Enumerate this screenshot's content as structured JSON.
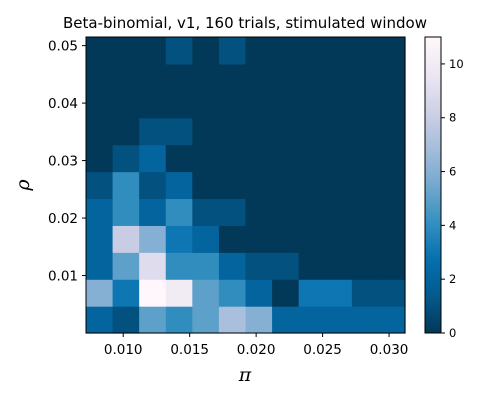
{
  "chart_data": {
    "type": "heatmap",
    "title": "Beta-binomial, v1, 160 trials, stimulated window",
    "xlabel": "π",
    "ylabel": "ρ",
    "x_range": [
      0.0072,
      0.0312
    ],
    "y_range": [
      0.0,
      0.0515
    ],
    "x_ticks": [
      {
        "value": 0.01,
        "label": "0.010"
      },
      {
        "value": 0.015,
        "label": "0.015"
      },
      {
        "value": 0.02,
        "label": "0.020"
      },
      {
        "value": 0.025,
        "label": "0.025"
      },
      {
        "value": 0.03,
        "label": "0.030"
      }
    ],
    "y_ticks": [
      {
        "value": 0.01,
        "label": "0.01"
      },
      {
        "value": 0.02,
        "label": "0.02"
      },
      {
        "value": 0.03,
        "label": "0.03"
      },
      {
        "value": 0.04,
        "label": "0.04"
      },
      {
        "value": 0.05,
        "label": "0.05"
      }
    ],
    "n_cols": 12,
    "n_rows": 11,
    "grid_bottom_to_top": [
      [
        2,
        1,
        5,
        4,
        5,
        7,
        6,
        2,
        2,
        2,
        2,
        2
      ],
      [
        6,
        3,
        11,
        10,
        5,
        4,
        2,
        0,
        3,
        3,
        1,
        1
      ],
      [
        2,
        5,
        9,
        4,
        4,
        2,
        1,
        1,
        0,
        0,
        0,
        0
      ],
      [
        2,
        8,
        6,
        3,
        2,
        0,
        0,
        0,
        0,
        0,
        0,
        0
      ],
      [
        2,
        4,
        2,
        4,
        1,
        1,
        0,
        0,
        0,
        0,
        0,
        0
      ],
      [
        1,
        4,
        1,
        2,
        0,
        0,
        0,
        0,
        0,
        0,
        0,
        0
      ],
      [
        0,
        1,
        2,
        0,
        0,
        0,
        0,
        0,
        0,
        0,
        0,
        0
      ],
      [
        0,
        0,
        1,
        1,
        0,
        0,
        0,
        0,
        0,
        0,
        0,
        0
      ],
      [
        0,
        0,
        0,
        0,
        0,
        0,
        0,
        0,
        0,
        0,
        0,
        0
      ],
      [
        0,
        0,
        0,
        0,
        0,
        0,
        0,
        0,
        0,
        0,
        0,
        0
      ],
      [
        0,
        0,
        0,
        1,
        0,
        1,
        0,
        0,
        0,
        0,
        0,
        0
      ]
    ],
    "colorbar": {
      "min": 0,
      "max": 11,
      "ticks": [
        {
          "value": 0,
          "label": "0"
        },
        {
          "value": 2,
          "label": "2"
        },
        {
          "value": 4,
          "label": "4"
        },
        {
          "value": 6,
          "label": "6"
        },
        {
          "value": 8,
          "label": "8"
        },
        {
          "value": 10,
          "label": "10"
        }
      ]
    },
    "colormap": "PuBu_r",
    "colormap_stops": [
      "#023858",
      "#045a8d",
      "#0570b0",
      "#3690c0",
      "#74a9cf",
      "#a6bddb",
      "#d0d1e6",
      "#ece7f2",
      "#fff7fb"
    ]
  }
}
